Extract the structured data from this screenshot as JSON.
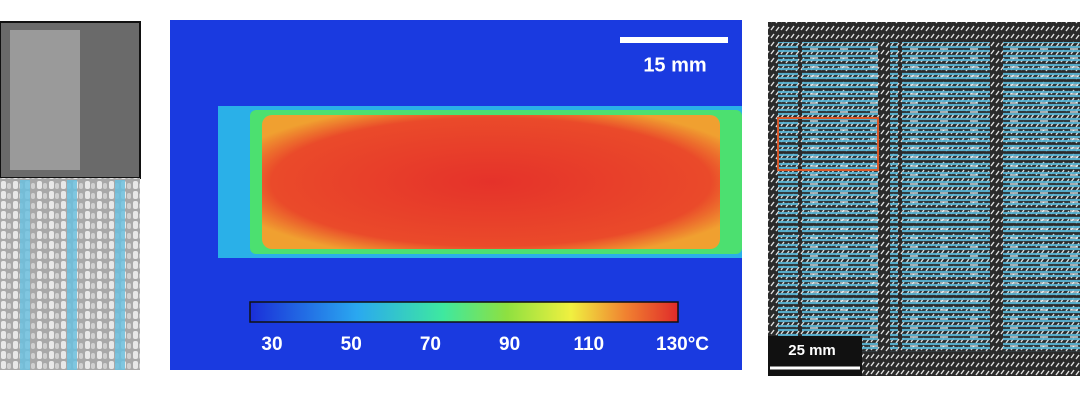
{
  "thermal_panel": {
    "scale_bar": "15 mm",
    "colorbar": {
      "labels": [
        "30",
        "50",
        "70",
        "90",
        "110",
        "130°C"
      ]
    }
  },
  "fabric_panel": {
    "scale_bar": "25 mm"
  }
}
